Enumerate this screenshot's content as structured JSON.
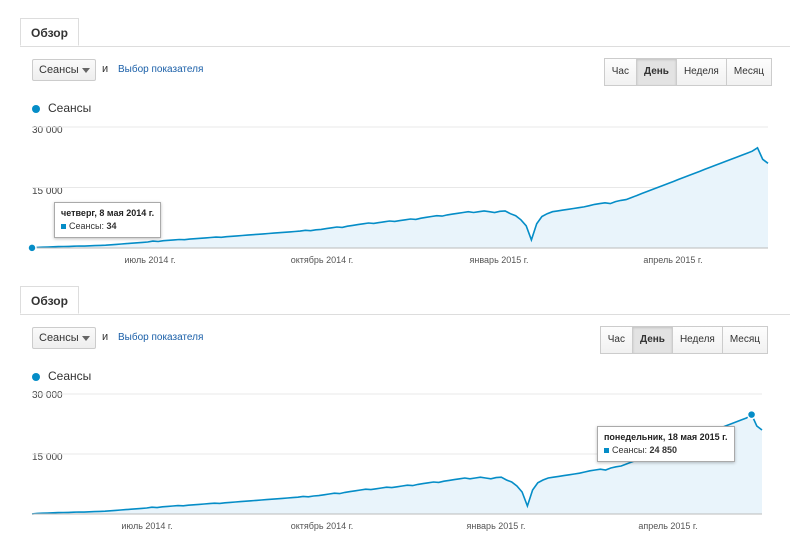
{
  "colors": {
    "line": "#058dc7",
    "fill": "#e9f4fb",
    "grid": "#e8e8e8",
    "link": "#1a5fa8"
  },
  "panels": [
    {
      "tab": "Обзор",
      "metric_select": "Сеансы",
      "and": "и",
      "choose_metric": "Выбор показателя",
      "granularity": [
        "Час",
        "День",
        "Неделя",
        "Месяц"
      ],
      "active_granularity": "День",
      "legend": "Сеансы",
      "y_ticks": [
        "30 000",
        "15 000"
      ],
      "x_ticks": [
        "июль 2014 г.",
        "октябрь 2014 г.",
        "январь 2015 г.",
        "апрель 2015 г."
      ],
      "tooltip": {
        "title": "четверг, 8 мая 2014 г.",
        "series": "Сеансы:",
        "value": "34"
      },
      "highlight_index": 0
    },
    {
      "tab": "Обзор",
      "metric_select": "Сеансы",
      "and": "и",
      "choose_metric": "Выбор показателя",
      "granularity": [
        "Час",
        "День",
        "Неделя",
        "Месяц"
      ],
      "active_granularity": "День",
      "legend": "Сеансы",
      "y_ticks": [
        "30 000",
        "15 000"
      ],
      "x_ticks": [
        "июль 2014 г.",
        "октябрь 2014 г.",
        "январь 2015 г.",
        "апрель 2015 г."
      ],
      "tooltip": {
        "title": "понедельник, 18 мая 2015 г.",
        "series": "Сеансы:",
        "value": "24 850"
      },
      "highlight_index": -1
    }
  ],
  "chart_data": {
    "type": "area",
    "series": [
      {
        "name": "Сеансы"
      }
    ],
    "x_range": [
      "2014-05-08",
      "2015-05-20"
    ],
    "ylim": [
      0,
      30000
    ],
    "highlighted": [
      {
        "date": "2014-05-08",
        "value": 34
      },
      {
        "date": "2015-05-18",
        "value": 24850
      }
    ],
    "y": [
      34,
      150,
      200,
      250,
      300,
      350,
      380,
      400,
      450,
      500,
      480,
      550,
      600,
      650,
      700,
      800,
      900,
      1000,
      1100,
      1200,
      1300,
      1400,
      1500,
      1700,
      1600,
      1800,
      1900,
      2000,
      2100,
      2050,
      2200,
      2300,
      2400,
      2500,
      2600,
      2700,
      2650,
      2800,
      2900,
      3000,
      3100,
      3200,
      3300,
      3400,
      3500,
      3600,
      3700,
      3800,
      3900,
      4000,
      4100,
      4200,
      4400,
      4300,
      4500,
      4600,
      4800,
      5000,
      5200,
      5100,
      5400,
      5600,
      5800,
      6000,
      6200,
      6100,
      6300,
      6500,
      6700,
      6600,
      6800,
      7000,
      7200,
      7100,
      7400,
      7600,
      7800,
      8000,
      7900,
      8200,
      8400,
      8600,
      8800,
      9000,
      8800,
      9000,
      9200,
      9000,
      8800,
      9100,
      9200,
      8500,
      8000,
      7000,
      5500,
      2000,
      6000,
      7800,
      8500,
      9000,
      9200,
      9400,
      9600,
      9800,
      10000,
      10200,
      10500,
      10800,
      11000,
      11200,
      11000,
      11500,
      11800,
      12000,
      12500,
      13000,
      13500,
      14000,
      14500,
      15000,
      15500,
      16000,
      16500,
      17000,
      17500,
      18000,
      18500,
      19000,
      19500,
      20000,
      20500,
      21000,
      21500,
      22000,
      22500,
      23000,
      23500,
      24000,
      24850,
      22000,
      21000
    ]
  }
}
